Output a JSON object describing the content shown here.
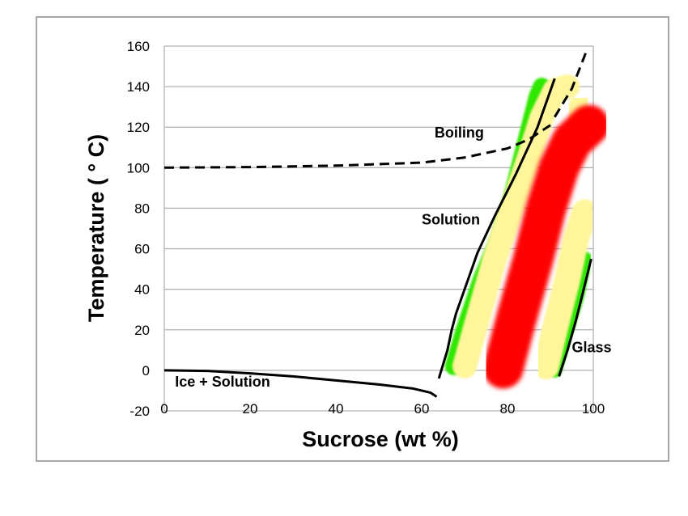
{
  "chart_data": {
    "type": "line",
    "title": "",
    "xlabel": "Sucrose (wt %)",
    "ylabel": "Temperature ( ° C)",
    "xlim": [
      0,
      100
    ],
    "ylim": [
      -20,
      160
    ],
    "x_ticks": [
      "0",
      "20",
      "40",
      "60",
      "80",
      "100"
    ],
    "y_ticks": [
      "-20",
      "0",
      "20",
      "40",
      "60",
      "80",
      "100",
      "120",
      "140",
      "160"
    ],
    "grid": true,
    "legend": "none",
    "series": [
      {
        "style": "dashed",
        "x": [
          0,
          20,
          40,
          60,
          70,
          80,
          85,
          90
        ],
        "y": [
          100,
          100.3,
          101,
          102.5,
          105,
          109.5,
          114,
          121
        ]
      },
      {
        "style": "solid",
        "x": [
          0,
          10,
          20,
          30,
          40,
          50,
          58,
          62,
          63.5
        ],
        "y": [
          0,
          -0.3,
          -1.5,
          -3,
          -5,
          -7,
          -9,
          -11,
          -13
        ]
      },
      {
        "style": "solid",
        "x": [
          64,
          66,
          67,
          68,
          70,
          73,
          77,
          82,
          87,
          91
        ],
        "y": [
          -4,
          10,
          20,
          28,
          40,
          58,
          76,
          97,
          120,
          144
        ]
      },
      {
        "style": "dashed",
        "x": [
          91,
          95,
          98.5
        ],
        "y": [
          125,
          139,
          158
        ]
      },
      {
        "style": "solid",
        "x": [
          92,
          94,
          96,
          98,
          99.5
        ],
        "y": [
          -3,
          10,
          25,
          42,
          55
        ]
      }
    ],
    "annotations": [
      {
        "text": "Boiling",
        "x": 63,
        "y": 115
      },
      {
        "text": "Solution",
        "x": 60,
        "y": 72
      },
      {
        "text": "Ice + Solution",
        "x": 2.5,
        "y": -8
      },
      {
        "text": "Glass",
        "x": 95,
        "y": 9
      }
    ],
    "bands": [
      {
        "color": "#2ee800",
        "from": [
          [
            67,
            2
          ],
          [
            86,
            140
          ]
        ],
        "to": [
          [
            92,
            1
          ],
          [
            99,
            58
          ]
        ],
        "width_pct": 100
      },
      {
        "color": "#fff59a",
        "from": [
          [
            69,
            3
          ],
          [
            88,
            138
          ]
        ],
        "to": [
          [
            88,
            2
          ],
          [
            99,
            80
          ]
        ],
        "width_pct": 100
      },
      {
        "color": "#ff0000",
        "from": [
          [
            74,
            0
          ],
          [
            95,
            124
          ]
        ],
        "to": [
          [
            83,
            0
          ],
          [
            99,
            100
          ]
        ],
        "width_pct": 100
      }
    ],
    "colors": {
      "green": "#2ee800",
      "yellow": "#fff59a",
      "red": "#ff0000"
    }
  }
}
